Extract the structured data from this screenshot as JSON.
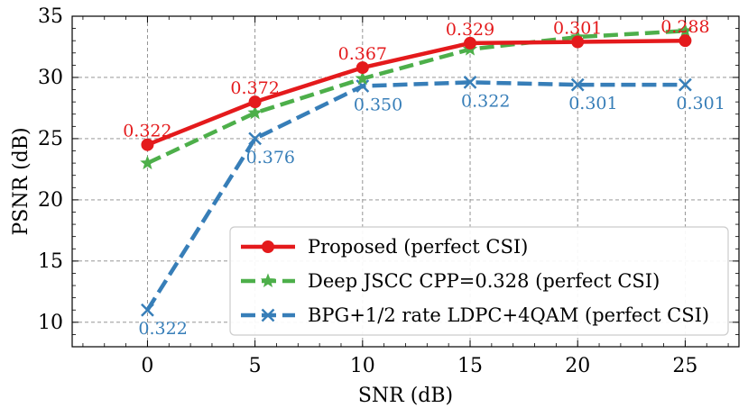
{
  "chart_data": {
    "type": "line",
    "title": "",
    "xlabel": "SNR (dB)",
    "ylabel": "PSNR (dB)",
    "xlim": [
      -3.5,
      27.5
    ],
    "ylim": [
      8,
      35
    ],
    "xticks": [
      0,
      5,
      10,
      15,
      20,
      25
    ],
    "yticks": [
      10,
      15,
      20,
      25,
      30,
      35
    ],
    "grid": true,
    "legend_position": "lower-right",
    "x": [
      0,
      5,
      10,
      15,
      20,
      25
    ],
    "series": [
      {
        "name": "Proposed (perfect CSI)",
        "color": "#e41a1c",
        "linestyle": "solid",
        "marker": "circle",
        "values": [
          24.5,
          28.0,
          30.8,
          32.8,
          32.9,
          33.0
        ],
        "point_labels": [
          "0.322",
          "0.372",
          "0.367",
          "0.329",
          "0.301",
          "0.288"
        ],
        "label_position": "above"
      },
      {
        "name": "Deep JSCC CPP=0.328 (perfect CSI)",
        "color": "#4daf4a",
        "linestyle": "dashed",
        "marker": "star",
        "values": [
          23.0,
          27.1,
          29.9,
          32.3,
          33.3,
          33.8
        ],
        "point_labels": [],
        "label_position": "none"
      },
      {
        "name": "BPG+1/2 rate LDPC+4QAM (perfect CSI)",
        "color": "#377eb8",
        "linestyle": "dashed",
        "marker": "x",
        "values": [
          11.0,
          25.0,
          29.3,
          29.6,
          29.4,
          29.4
        ],
        "point_labels": [
          "0.322",
          "0.376",
          "0.350",
          "0.322",
          "0.301",
          "0.301"
        ],
        "label_position": "below"
      }
    ]
  }
}
